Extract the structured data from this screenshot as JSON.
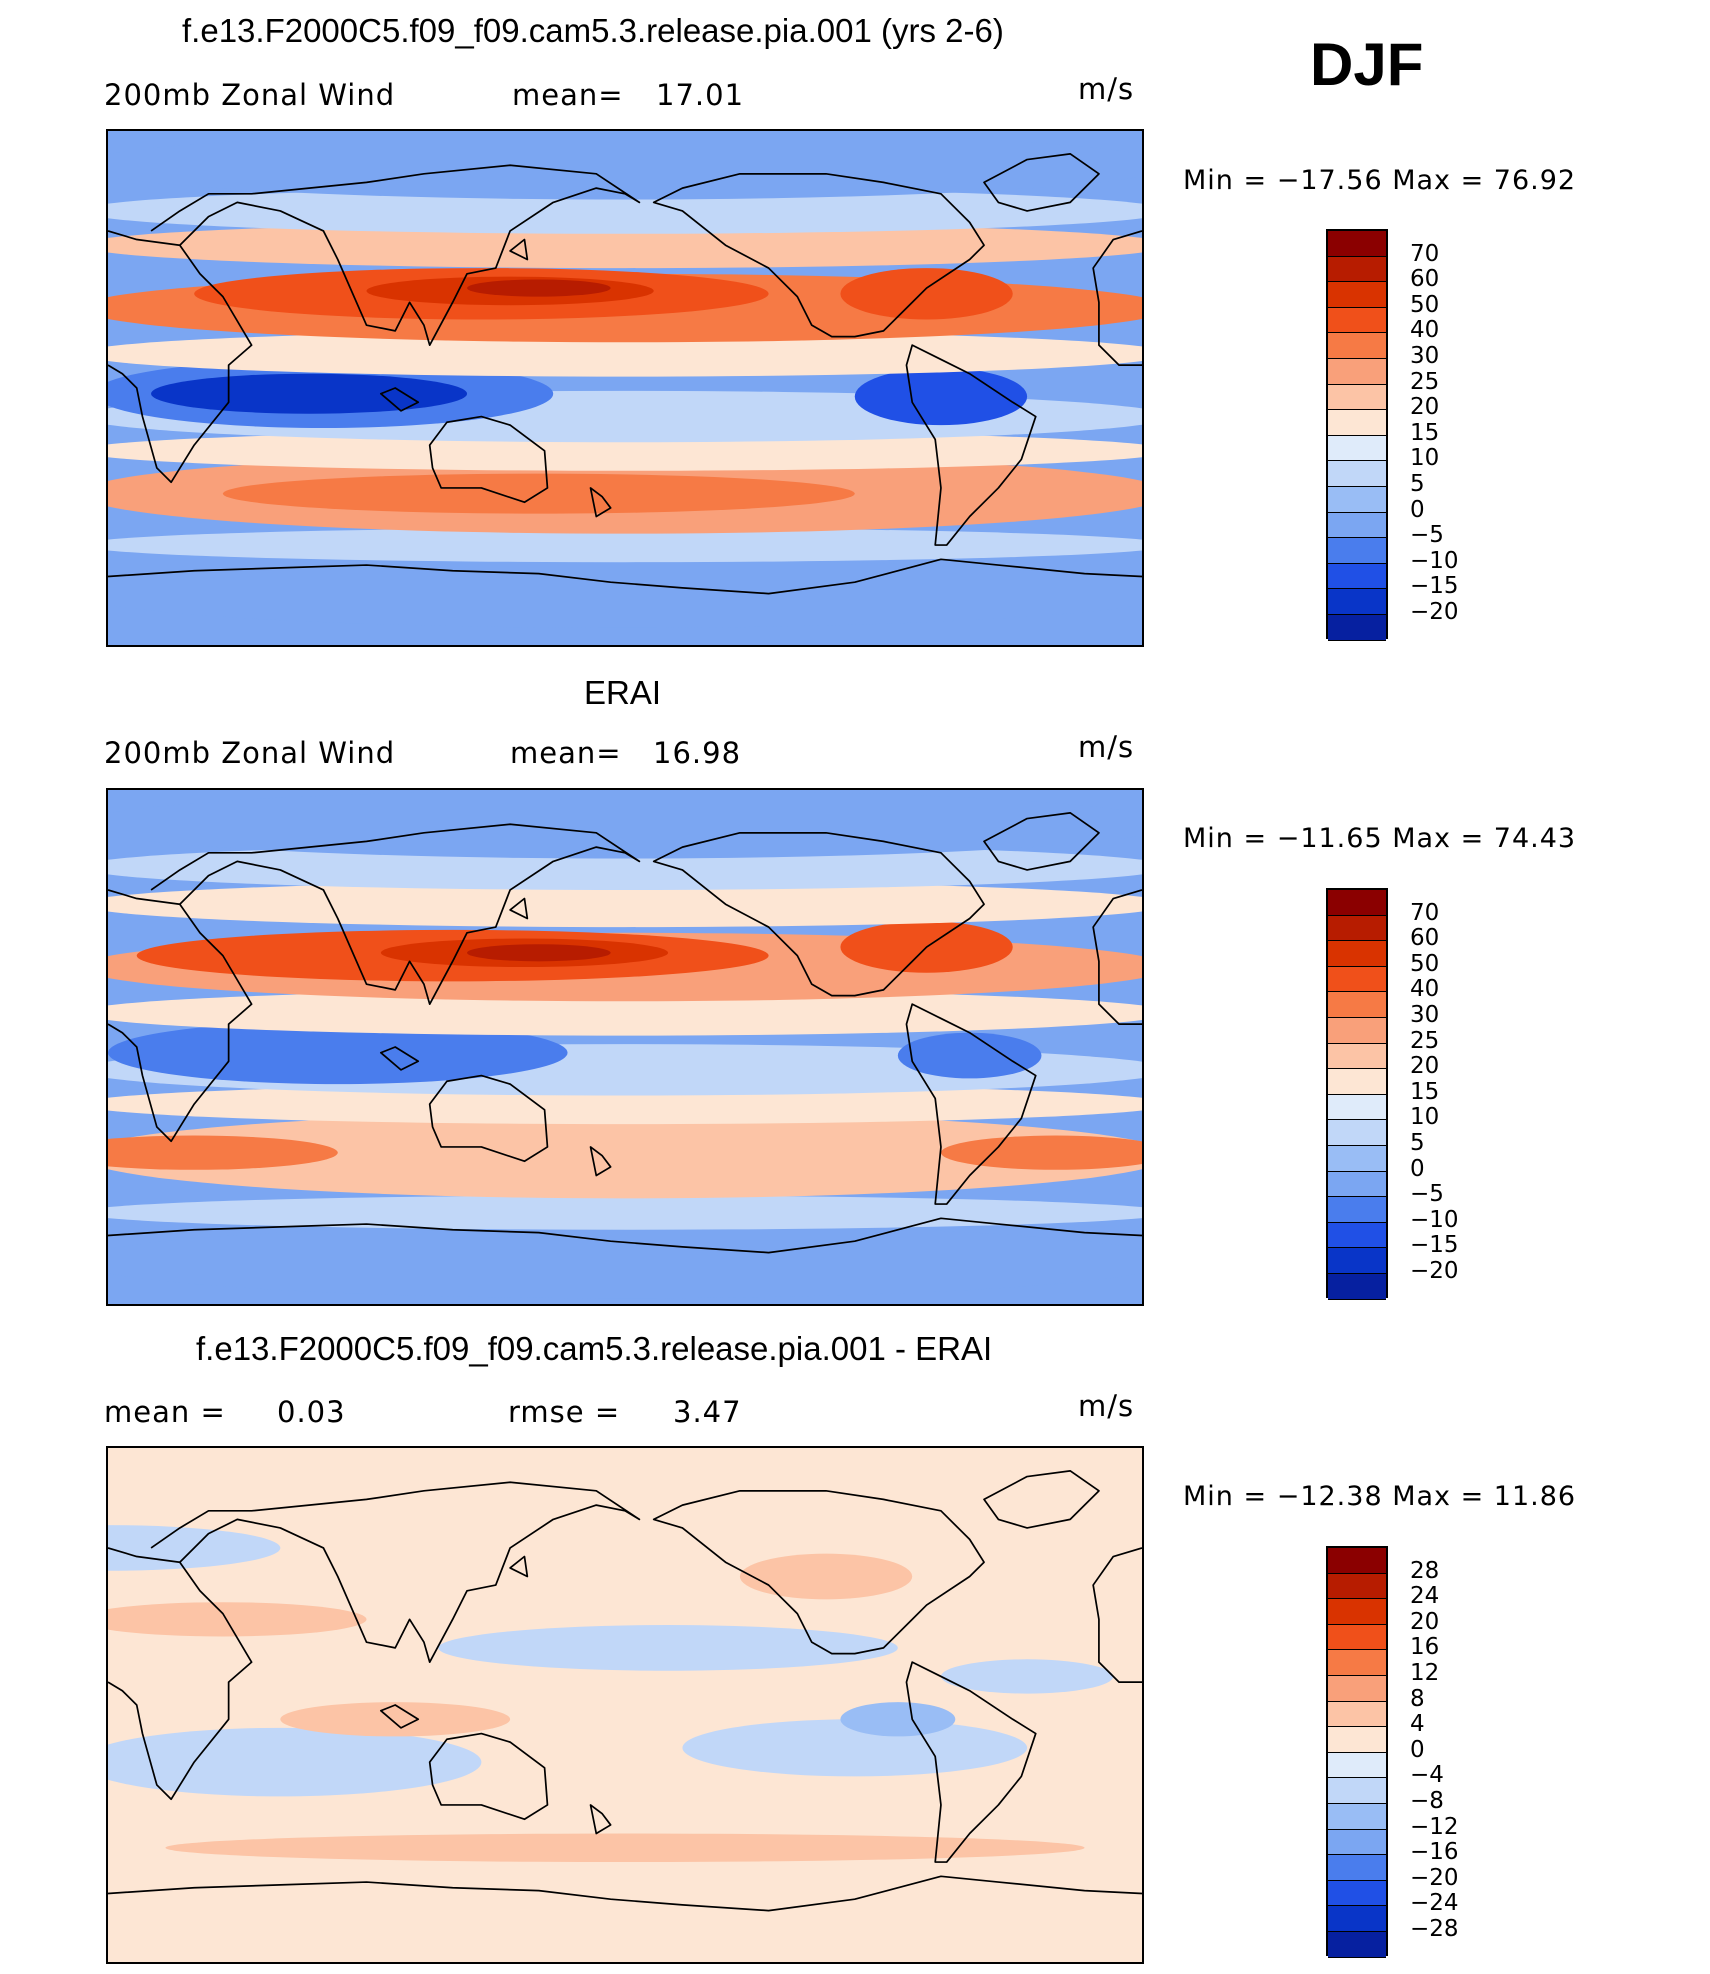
{
  "season": "DJF",
  "panels": [
    {
      "title": "f.e13.F2000C5.f09_f09.cam5.3.release.pia.001 (yrs 2-6)",
      "left_label": "200mb Zonal Wind",
      "stat_label": "mean=",
      "stat_value": "17.01",
      "unit": "m/s",
      "minmax": "Min = −17.56 Max =   76.92"
    },
    {
      "title": "ERAI",
      "left_label": "200mb Zonal Wind",
      "stat_label": "mean=",
      "stat_value": "16.98",
      "unit": "m/s",
      "minmax": "Min = −11.65 Max =   74.43"
    },
    {
      "title": "f.e13.F2000C5.f09_f09.cam5.3.release.pia.001 - ERAI",
      "left_label": "mean =",
      "left_value": "0.03",
      "stat_label": "rmse =",
      "stat_value": "3.47",
      "unit": "m/s",
      "minmax": "Min = −12.38 Max =   11.86"
    }
  ],
  "colorbars": {
    "wind": {
      "ticks": [
        "70",
        "60",
        "50",
        "40",
        "30",
        "25",
        "20",
        "15",
        "10",
        "5",
        "0",
        "−5",
        "−10",
        "−15",
        "−20"
      ],
      "colors": [
        "#8b0000",
        "#b71c00",
        "#d93300",
        "#f0501a",
        "#f67a45",
        "#f9a07a",
        "#fcc4a6",
        "#fde6d4",
        "#dfebfa",
        "#c1d7f8",
        "#99bdf5",
        "#7ba6f2",
        "#4a7ded",
        "#2050e6",
        "#0935c8",
        "#0620a0"
      ]
    },
    "diff": {
      "ticks": [
        "28",
        "24",
        "20",
        "16",
        "12",
        "8",
        "4",
        "0",
        "−4",
        "−8",
        "−12",
        "−16",
        "−20",
        "−24",
        "−28"
      ],
      "colors": [
        "#8b0000",
        "#b71c00",
        "#d93300",
        "#f0501a",
        "#f67a45",
        "#f9a07a",
        "#fcc4a6",
        "#fde6d4",
        "#dfebfa",
        "#c1d7f8",
        "#99bdf5",
        "#7ba6f2",
        "#4a7ded",
        "#2050e6",
        "#0935c8",
        "#0620a0"
      ]
    }
  },
  "map_fields": {
    "model": {
      "bg": "#7ba6f2",
      "blobs": [
        {
          "lon": 180,
          "lat": -72,
          "rx": 190,
          "ry": 12,
          "c": "#7ba6f2"
        },
        {
          "lon": 180,
          "lat": -55,
          "rx": 190,
          "ry": 6,
          "c": "#c1d7f8"
        },
        {
          "lon": 180,
          "lat": -37,
          "rx": 190,
          "ry": 14,
          "c": "#f9a07a"
        },
        {
          "lon": 150,
          "lat": -37,
          "rx": 110,
          "ry": 7,
          "c": "#f67a45"
        },
        {
          "lon": 180,
          "lat": -22,
          "rx": 190,
          "ry": 7,
          "c": "#fde6d4"
        },
        {
          "lon": 180,
          "lat": -10,
          "rx": 190,
          "ry": 9,
          "c": "#c1d7f8"
        },
        {
          "lon": 75,
          "lat": -2,
          "rx": 80,
          "ry": 12,
          "c": "#4a7ded"
        },
        {
          "lon": 70,
          "lat": -2,
          "rx": 55,
          "ry": 7,
          "c": "#0935c8"
        },
        {
          "lon": 290,
          "lat": -3,
          "rx": 30,
          "ry": 10,
          "c": "#2050e6"
        },
        {
          "lon": 180,
          "lat": 12,
          "rx": 190,
          "ry": 8,
          "c": "#fde6d4"
        },
        {
          "lon": 180,
          "lat": 28,
          "rx": 190,
          "ry": 12,
          "c": "#f67a45"
        },
        {
          "lon": 130,
          "lat": 33,
          "rx": 100,
          "ry": 9,
          "c": "#f0501a"
        },
        {
          "lon": 140,
          "lat": 34,
          "rx": 50,
          "ry": 5,
          "c": "#d93300"
        },
        {
          "lon": 150,
          "lat": 35,
          "rx": 25,
          "ry": 3,
          "c": "#b71c00"
        },
        {
          "lon": 285,
          "lat": 33,
          "rx": 30,
          "ry": 9,
          "c": "#f0501a"
        },
        {
          "lon": 180,
          "lat": 50,
          "rx": 190,
          "ry": 8,
          "c": "#fcc4a6"
        },
        {
          "lon": 180,
          "lat": 62,
          "rx": 190,
          "ry": 8,
          "c": "#c1d7f8"
        },
        {
          "lon": 180,
          "lat": 78,
          "rx": 190,
          "ry": 12,
          "c": "#7ba6f2"
        }
      ]
    },
    "erai": {
      "bg": "#7ba6f2",
      "blobs": [
        {
          "lon": 180,
          "lat": -75,
          "rx": 190,
          "ry": 13,
          "c": "#7ba6f2"
        },
        {
          "lon": 180,
          "lat": -58,
          "rx": 190,
          "ry": 6,
          "c": "#c1d7f8"
        },
        {
          "lon": 180,
          "lat": -38,
          "rx": 190,
          "ry": 15,
          "c": "#fcc4a6"
        },
        {
          "lon": 30,
          "lat": -37,
          "rx": 50,
          "ry": 6,
          "c": "#f67a45"
        },
        {
          "lon": 330,
          "lat": -37,
          "rx": 40,
          "ry": 6,
          "c": "#f67a45"
        },
        {
          "lon": 180,
          "lat": -20,
          "rx": 190,
          "ry": 7,
          "c": "#fde6d4"
        },
        {
          "lon": 180,
          "lat": -8,
          "rx": 190,
          "ry": 9,
          "c": "#c1d7f8"
        },
        {
          "lon": 80,
          "lat": -2,
          "rx": 80,
          "ry": 11,
          "c": "#4a7ded"
        },
        {
          "lon": 300,
          "lat": -3,
          "rx": 25,
          "ry": 8,
          "c": "#4a7ded"
        },
        {
          "lon": 180,
          "lat": 12,
          "rx": 190,
          "ry": 8,
          "c": "#fde6d4"
        },
        {
          "lon": 180,
          "lat": 28,
          "rx": 190,
          "ry": 12,
          "c": "#f9a07a"
        },
        {
          "lon": 120,
          "lat": 32,
          "rx": 110,
          "ry": 9,
          "c": "#f0501a"
        },
        {
          "lon": 145,
          "lat": 33,
          "rx": 50,
          "ry": 5,
          "c": "#d93300"
        },
        {
          "lon": 150,
          "lat": 33,
          "rx": 25,
          "ry": 3,
          "c": "#b71c00"
        },
        {
          "lon": 285,
          "lat": 35,
          "rx": 30,
          "ry": 9,
          "c": "#f0501a"
        },
        {
          "lon": 180,
          "lat": 50,
          "rx": 190,
          "ry": 8,
          "c": "#fde6d4"
        },
        {
          "lon": 180,
          "lat": 63,
          "rx": 190,
          "ry": 8,
          "c": "#c1d7f8"
        },
        {
          "lon": 180,
          "lat": 78,
          "rx": 190,
          "ry": 12,
          "c": "#7ba6f2"
        }
      ]
    },
    "diff": {
      "bg": "#fde6d4",
      "blobs": [
        {
          "lon": 180,
          "lat": -75,
          "rx": 190,
          "ry": 10,
          "c": "#fde6d4"
        },
        {
          "lon": 180,
          "lat": -50,
          "rx": 160,
          "ry": 5,
          "c": "#fcc4a6"
        },
        {
          "lon": 60,
          "lat": -20,
          "rx": 70,
          "ry": 12,
          "c": "#c1d7f8"
        },
        {
          "lon": 260,
          "lat": -15,
          "rx": 60,
          "ry": 10,
          "c": "#c1d7f8"
        },
        {
          "lon": 275,
          "lat": -5,
          "rx": 20,
          "ry": 6,
          "c": "#99bdf5"
        },
        {
          "lon": 195,
          "lat": 20,
          "rx": 80,
          "ry": 8,
          "c": "#c1d7f8"
        },
        {
          "lon": 40,
          "lat": 30,
          "rx": 50,
          "ry": 6,
          "c": "#fcc4a6"
        },
        {
          "lon": 0,
          "lat": 55,
          "rx": 60,
          "ry": 8,
          "c": "#c1d7f8"
        },
        {
          "lon": 250,
          "lat": 45,
          "rx": 30,
          "ry": 8,
          "c": "#fcc4a6"
        },
        {
          "lon": 100,
          "lat": -5,
          "rx": 40,
          "ry": 6,
          "c": "#fcc4a6"
        },
        {
          "lon": 320,
          "lat": 10,
          "rx": 30,
          "ry": 6,
          "c": "#c1d7f8"
        }
      ]
    }
  }
}
